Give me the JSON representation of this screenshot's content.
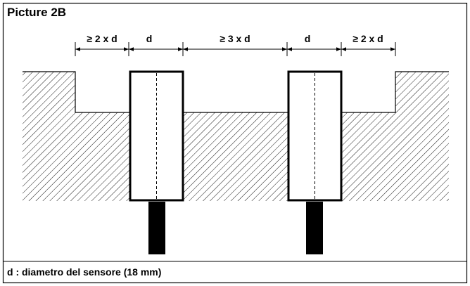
{
  "header": {
    "title": "Picture 2B"
  },
  "dimensions": [
    "≥ 2 x d",
    "d",
    "≥ 3 x d",
    "d",
    "≥ 2 x d"
  ],
  "caption": "d : diametro del sensore (18 mm)"
}
